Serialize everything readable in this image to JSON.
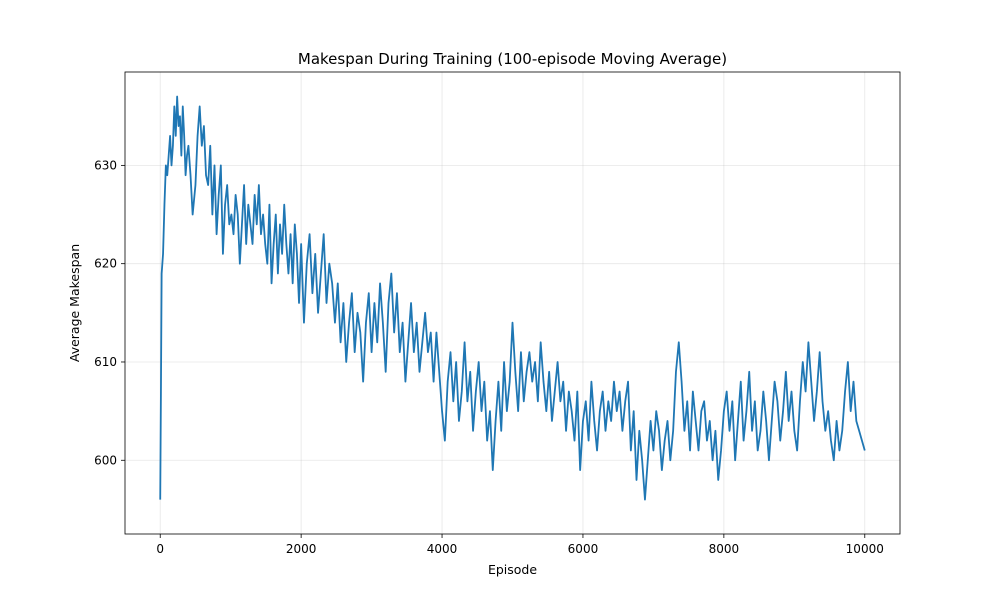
{
  "chart_data": {
    "type": "line",
    "title": "Makespan During Training (100-episode Moving Average)",
    "xlabel": "Episode",
    "ylabel": "Average Makespan",
    "xlim": [
      -500,
      10500
    ],
    "ylim": [
      592.5,
      639.5
    ],
    "xticks": [
      0,
      2000,
      4000,
      6000,
      8000,
      10000
    ],
    "yticks": [
      600,
      610,
      620,
      630
    ],
    "grid": true,
    "series": [
      {
        "color": "#1f77b4",
        "x": [
          0,
          10,
          20,
          40,
          60,
          80,
          100,
          120,
          140,
          160,
          180,
          200,
          220,
          240,
          260,
          280,
          300,
          320,
          340,
          360,
          380,
          400,
          430,
          460,
          500,
          530,
          560,
          590,
          620,
          650,
          680,
          710,
          740,
          770,
          800,
          830,
          860,
          890,
          920,
          950,
          980,
          1010,
          1040,
          1070,
          1100,
          1130,
          1160,
          1190,
          1220,
          1250,
          1280,
          1310,
          1340,
          1370,
          1400,
          1430,
          1460,
          1490,
          1520,
          1550,
          1580,
          1610,
          1640,
          1670,
          1700,
          1730,
          1760,
          1790,
          1820,
          1850,
          1880,
          1910,
          1940,
          1970,
          2000,
          2040,
          2080,
          2120,
          2160,
          2200,
          2240,
          2280,
          2320,
          2360,
          2400,
          2440,
          2480,
          2520,
          2560,
          2600,
          2640,
          2680,
          2720,
          2760,
          2800,
          2840,
          2880,
          2920,
          2960,
          3000,
          3040,
          3080,
          3120,
          3160,
          3200,
          3240,
          3280,
          3320,
          3360,
          3400,
          3440,
          3480,
          3520,
          3560,
          3600,
          3640,
          3680,
          3720,
          3760,
          3800,
          3840,
          3880,
          3920,
          3960,
          4000,
          4040,
          4080,
          4120,
          4160,
          4200,
          4240,
          4280,
          4320,
          4360,
          4400,
          4440,
          4480,
          4520,
          4560,
          4600,
          4640,
          4680,
          4720,
          4760,
          4800,
          4840,
          4880,
          4920,
          4960,
          5000,
          5040,
          5080,
          5120,
          5160,
          5200,
          5240,
          5280,
          5320,
          5360,
          5400,
          5440,
          5480,
          5520,
          5560,
          5600,
          5640,
          5680,
          5720,
          5760,
          5800,
          5840,
          5880,
          5920,
          5960,
          6000,
          6040,
          6080,
          6120,
          6160,
          6200,
          6240,
          6280,
          6320,
          6360,
          6400,
          6440,
          6480,
          6520,
          6560,
          6600,
          6640,
          6680,
          6720,
          6760,
          6800,
          6840,
          6880,
          6920,
          6960,
          7000,
          7040,
          7080,
          7120,
          7160,
          7200,
          7240,
          7280,
          7320,
          7360,
          7400,
          7440,
          7480,
          7520,
          7560,
          7600,
          7640,
          7680,
          7720,
          7760,
          7800,
          7840,
          7880,
          7920,
          7960,
          8000,
          8040,
          8080,
          8120,
          8160,
          8200,
          8240,
          8280,
          8320,
          8360,
          8400,
          8440,
          8480,
          8520,
          8560,
          8600,
          8640,
          8680,
          8720,
          8760,
          8800,
          8840,
          8880,
          8920,
          8960,
          9000,
          9040,
          9080,
          9120,
          9160,
          9200,
          9240,
          9280,
          9320,
          9360,
          9400,
          9440,
          9480,
          9520,
          9560,
          9600,
          9640,
          9680,
          9720,
          9760,
          9800,
          9840,
          9880,
          9920,
          9960,
          10000
        ],
        "y": [
          596,
          607,
          619,
          621,
          626,
          630,
          629,
          631,
          633,
          630,
          632,
          636,
          633,
          637,
          634,
          635,
          631,
          636,
          633,
          629,
          631,
          632,
          629,
          625,
          628,
          633,
          636,
          632,
          634,
          629,
          628,
          632,
          625,
          630,
          623,
          627,
          630,
          621,
          626,
          628,
          624,
          625,
          623,
          627,
          625,
          620,
          624,
          628,
          622,
          626,
          624,
          622,
          627,
          624,
          628,
          623,
          625,
          622,
          620,
          626,
          618,
          622,
          625,
          619,
          624,
          621,
          626,
          622,
          619,
          623,
          618,
          624,
          621,
          616,
          622,
          614,
          620,
          623,
          617,
          621,
          615,
          619,
          623,
          616,
          620,
          618,
          614,
          618,
          612,
          616,
          610,
          614,
          617,
          611,
          615,
          613,
          608,
          614,
          617,
          611,
          616,
          612,
          618,
          614,
          609,
          616,
          619,
          613,
          617,
          611,
          614,
          608,
          612,
          616,
          611,
          614,
          609,
          612,
          615,
          611,
          613,
          608,
          613,
          609,
          605,
          602,
          608,
          611,
          606,
          610,
          604,
          607,
          612,
          606,
          609,
          603,
          607,
          610,
          605,
          608,
          602,
          605,
          599,
          604,
          608,
          603,
          610,
          605,
          608,
          614,
          609,
          605,
          611,
          606,
          609,
          611,
          608,
          610,
          606,
          612,
          608,
          605,
          609,
          604,
          607,
          610,
          606,
          608,
          603,
          607,
          605,
          602,
          607,
          599,
          604,
          606,
          602,
          608,
          604,
          601,
          605,
          607,
          603,
          606,
          604,
          608,
          605,
          607,
          603,
          606,
          608,
          601,
          605,
          598,
          603,
          600,
          596,
          600,
          604,
          601,
          605,
          603,
          599,
          602,
          604,
          600,
          603,
          609,
          612,
          608,
          603,
          606,
          601,
          607,
          604,
          601,
          605,
          606,
          602,
          604,
          600,
          603,
          598,
          601,
          605,
          607,
          603,
          606,
          600,
          604,
          608,
          602,
          605,
          609,
          603,
          606,
          601,
          603,
          607,
          604,
          600,
          604,
          608,
          606,
          602,
          605,
          609,
          604,
          607,
          603,
          601,
          606,
          610,
          607,
          612,
          608,
          604,
          607,
          611,
          606,
          603,
          605,
          602,
          600,
          604,
          601,
          603,
          607,
          610,
          605,
          608,
          604,
          603,
          602,
          601
        ]
      }
    ]
  }
}
